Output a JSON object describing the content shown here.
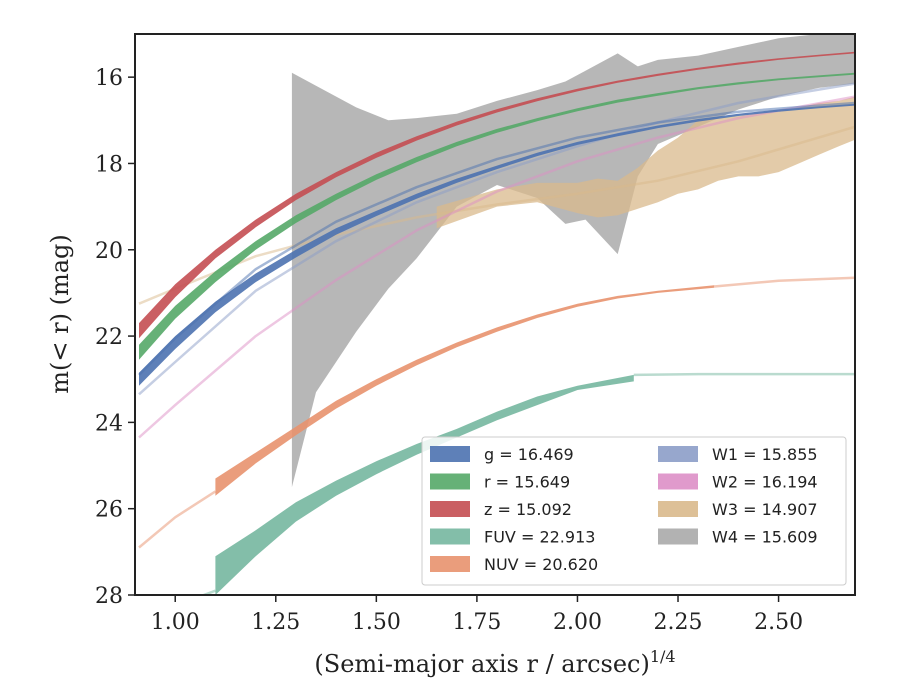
{
  "chart_data": {
    "type": "area",
    "xlabel": "(Semi-major axis r / arcsec)",
    "xlabel_superscript": "1/4",
    "ylabel": "m(< r) (mag)",
    "xlim": [
      0.9,
      2.69
    ],
    "ylim": [
      28,
      15
    ],
    "y_inverted": true,
    "grid": false,
    "legend_position": "lower-right",
    "xticks": [
      "1.00",
      "1.25",
      "1.50",
      "1.75",
      "2.00",
      "2.25",
      "2.50"
    ],
    "yticks": [
      "16",
      "18",
      "20",
      "22",
      "24",
      "26",
      "28"
    ],
    "series": [
      {
        "name": "g",
        "legend": "g = 16.469",
        "color": "#4c72b0",
        "faint_x": [
          0.91,
          1.0,
          1.2,
          1.4,
          1.6,
          1.8,
          2.0,
          2.2,
          2.4,
          2.69
        ],
        "faint_y": [
          22.9,
          22.05,
          20.45,
          19.35,
          18.55,
          17.9,
          17.4,
          17.05,
          16.8,
          16.6
        ],
        "band_x": [
          0.91,
          1.0,
          1.1,
          1.2,
          1.3,
          1.4,
          1.5,
          1.6,
          1.7,
          1.8,
          1.9,
          2.0,
          2.1,
          2.2,
          2.3,
          2.4,
          2.5,
          2.6,
          2.69
        ],
        "band_upper": [
          22.85,
          22.0,
          21.2,
          20.55,
          20.0,
          19.5,
          19.1,
          18.7,
          18.35,
          18.05,
          17.75,
          17.5,
          17.3,
          17.12,
          16.97,
          16.85,
          16.75,
          16.68,
          16.62
        ],
        "band_lower": [
          23.15,
          22.3,
          21.45,
          20.75,
          20.18,
          19.65,
          19.22,
          18.82,
          18.45,
          18.13,
          17.83,
          17.57,
          17.37,
          17.18,
          17.03,
          16.9,
          16.8,
          16.72,
          16.66
        ]
      },
      {
        "name": "r",
        "legend": "r = 15.649",
        "color": "#55a868",
        "faint_x": [],
        "faint_y": [],
        "band_x": [
          0.91,
          1.0,
          1.1,
          1.2,
          1.3,
          1.4,
          1.5,
          1.6,
          1.7,
          1.8,
          1.9,
          2.0,
          2.1,
          2.2,
          2.3,
          2.4,
          2.5,
          2.6,
          2.69
        ],
        "band_upper": [
          22.2,
          21.3,
          20.5,
          19.8,
          19.2,
          18.7,
          18.25,
          17.85,
          17.5,
          17.2,
          16.95,
          16.72,
          16.52,
          16.37,
          16.23,
          16.12,
          16.03,
          15.96,
          15.9
        ],
        "band_lower": [
          22.55,
          21.6,
          20.75,
          20.0,
          19.38,
          18.85,
          18.38,
          17.97,
          17.6,
          17.29,
          17.02,
          16.79,
          16.59,
          16.43,
          16.28,
          16.17,
          16.07,
          16.0,
          15.94
        ]
      },
      {
        "name": "z",
        "legend": "z = 15.092",
        "color": "#c44e52",
        "faint_x": [],
        "faint_y": [],
        "band_x": [
          0.91,
          1.0,
          1.1,
          1.2,
          1.3,
          1.4,
          1.5,
          1.6,
          1.7,
          1.8,
          1.9,
          2.0,
          2.1,
          2.2,
          2.3,
          2.4,
          2.5,
          2.6,
          2.69
        ],
        "band_upper": [
          21.7,
          20.8,
          20.0,
          19.3,
          18.7,
          18.2,
          17.75,
          17.37,
          17.03,
          16.74,
          16.49,
          16.27,
          16.08,
          15.92,
          15.78,
          15.66,
          15.56,
          15.48,
          15.41
        ],
        "band_lower": [
          22.05,
          21.1,
          20.2,
          19.48,
          18.85,
          18.32,
          17.87,
          17.47,
          17.12,
          16.82,
          16.56,
          16.33,
          16.13,
          15.97,
          15.83,
          15.71,
          15.6,
          15.52,
          15.45
        ]
      },
      {
        "name": "FUV",
        "legend": "FUV = 22.913",
        "color": "#76b7a0",
        "faint_x": [
          0.91,
          1.0,
          1.1,
          2.14,
          2.3,
          2.5,
          2.69
        ],
        "faint_y": [
          28.6,
          28.25,
          27.9,
          22.9,
          22.88,
          22.88,
          22.88
        ],
        "band_x": [
          1.1,
          1.2,
          1.3,
          1.4,
          1.5,
          1.6,
          1.7,
          1.8,
          1.9,
          2.0,
          2.14
        ],
        "band_upper": [
          27.1,
          26.5,
          25.85,
          25.35,
          24.9,
          24.5,
          24.15,
          23.75,
          23.4,
          23.15,
          22.9
        ],
        "band_lower": [
          28.0,
          27.1,
          26.3,
          25.7,
          25.2,
          24.75,
          24.35,
          23.95,
          23.6,
          23.25,
          23.05
        ]
      },
      {
        "name": "NUV",
        "legend": "NUV = 20.620",
        "color": "#e8926e",
        "faint_x": [
          0.91,
          1.0,
          1.1,
          2.34,
          2.5,
          2.69
        ],
        "faint_y": [
          26.9,
          26.2,
          25.6,
          20.85,
          20.72,
          20.65
        ],
        "band_x": [
          1.1,
          1.2,
          1.3,
          1.4,
          1.5,
          1.6,
          1.7,
          1.8,
          1.9,
          2.0,
          2.1,
          2.2,
          2.34
        ],
        "band_upper": [
          25.3,
          24.7,
          24.1,
          23.5,
          23.0,
          22.55,
          22.15,
          21.8,
          21.5,
          21.25,
          21.07,
          20.95,
          20.82
        ],
        "band_lower": [
          25.7,
          24.95,
          24.3,
          23.68,
          23.15,
          22.68,
          22.26,
          21.9,
          21.58,
          21.32,
          21.13,
          21.0,
          20.88
        ]
      },
      {
        "name": "W1",
        "legend": "W1 = 15.855",
        "color": "#8c9dc8",
        "faint_x": [
          0.91,
          1.0,
          1.2,
          1.4,
          1.6,
          1.8,
          2.0,
          2.2,
          2.4,
          2.69
        ],
        "faint_y": [
          23.35,
          22.6,
          20.95,
          19.8,
          18.9,
          18.2,
          17.6,
          17.05,
          16.6,
          16.15
        ],
        "band_x": [],
        "band_upper": [],
        "band_lower": []
      },
      {
        "name": "W2",
        "legend": "W2 = 16.194",
        "color": "#dd8fc6",
        "faint_x": [
          0.91,
          1.0,
          1.2,
          1.4,
          1.6,
          1.8,
          2.0,
          2.2,
          2.4,
          2.69
        ],
        "faint_y": [
          24.35,
          23.6,
          22.0,
          20.7,
          19.55,
          18.65,
          17.95,
          17.4,
          16.95,
          16.45
        ],
        "band_x": [],
        "band_upper": [],
        "band_lower": []
      },
      {
        "name": "W3",
        "legend": "W3 = 14.907",
        "color": "#d9b98c",
        "faint_x": [
          0.91,
          1.0,
          1.2,
          1.4,
          1.6,
          1.8,
          2.0,
          2.2,
          2.4,
          2.69
        ],
        "faint_y": [
          21.25,
          20.9,
          20.15,
          19.65,
          19.25,
          18.95,
          18.7,
          18.4,
          17.95,
          17.15
        ],
        "band_x": [
          1.65,
          1.8,
          1.9,
          2.0,
          2.05,
          2.1,
          2.15,
          2.2,
          2.25,
          2.3,
          2.35,
          2.4,
          2.45,
          2.5,
          2.55,
          2.6,
          2.65,
          2.69
        ],
        "band_upper": [
          19.0,
          18.6,
          18.45,
          18.45,
          18.35,
          18.4,
          18.1,
          17.7,
          17.4,
          17.0,
          16.95,
          16.9,
          16.85,
          16.8,
          16.7,
          16.6,
          16.55,
          16.45
        ],
        "band_lower": [
          19.5,
          19.0,
          18.9,
          19.15,
          19.25,
          19.2,
          19.05,
          18.9,
          18.7,
          18.6,
          18.4,
          18.3,
          18.3,
          18.2,
          18.0,
          17.8,
          17.6,
          17.45
        ]
      },
      {
        "name": "W4",
        "legend": "W4 = 15.609",
        "color": "#aaaaaa",
        "faint_x": [],
        "faint_y": [],
        "band_x": [
          1.29,
          1.35,
          1.45,
          1.53,
          1.6,
          1.7,
          1.8,
          1.9,
          1.97,
          2.02,
          2.1,
          2.15,
          2.2,
          2.3,
          2.4,
          2.5,
          2.6,
          2.69
        ],
        "band_upper": [
          15.9,
          16.2,
          16.7,
          17.0,
          16.95,
          16.85,
          16.55,
          16.3,
          16.1,
          15.85,
          15.45,
          15.75,
          15.6,
          15.5,
          15.3,
          15.1,
          15.0,
          14.95
        ],
        "band_lower": [
          25.5,
          23.3,
          21.9,
          20.9,
          20.2,
          19.0,
          18.5,
          18.8,
          19.4,
          19.3,
          20.1,
          18.3,
          17.55,
          17.15,
          16.75,
          16.45,
          16.25,
          16.15
        ]
      }
    ]
  }
}
